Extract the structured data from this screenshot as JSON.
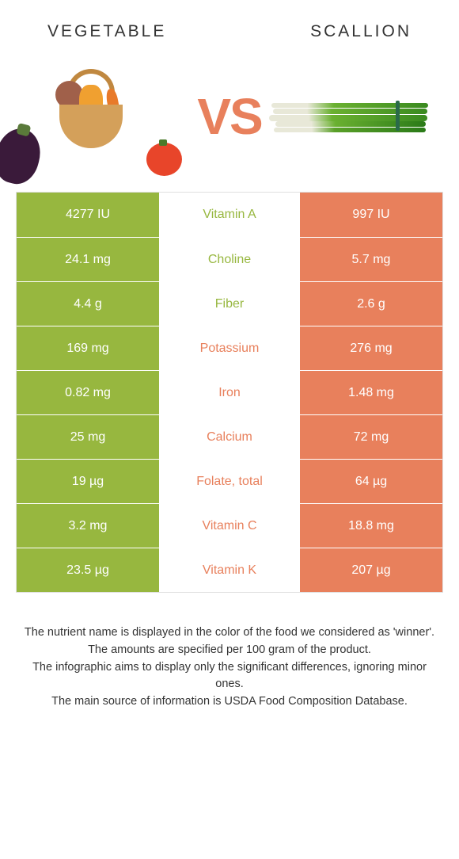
{
  "header": {
    "left_title": "VEGETABLE",
    "right_title": "SCALLION"
  },
  "vs_label": "VS",
  "colors": {
    "left_bg": "#97b73f",
    "right_bg": "#e8805c",
    "left_text": "#97b73f",
    "right_text": "#e8805c",
    "vs_color": "#e8805c"
  },
  "comparison": {
    "rows": [
      {
        "left": "4277 IU",
        "nutrient": "Vitamin A",
        "right": "997 IU",
        "winner": "left"
      },
      {
        "left": "24.1 mg",
        "nutrient": "Choline",
        "right": "5.7 mg",
        "winner": "left"
      },
      {
        "left": "4.4 g",
        "nutrient": "Fiber",
        "right": "2.6 g",
        "winner": "left"
      },
      {
        "left": "169 mg",
        "nutrient": "Potassium",
        "right": "276 mg",
        "winner": "right"
      },
      {
        "left": "0.82 mg",
        "nutrient": "Iron",
        "right": "1.48 mg",
        "winner": "right"
      },
      {
        "left": "25 mg",
        "nutrient": "Calcium",
        "right": "72 mg",
        "winner": "right"
      },
      {
        "left": "19 µg",
        "nutrient": "Folate, total",
        "right": "64 µg",
        "winner": "right"
      },
      {
        "left": "3.2 mg",
        "nutrient": "Vitamin C",
        "right": "18.8 mg",
        "winner": "right"
      },
      {
        "left": "23.5 µg",
        "nutrient": "Vitamin K",
        "right": "207 µg",
        "winner": "right"
      }
    ]
  },
  "footnotes": {
    "line1": "The nutrient name is displayed in the color of the food we considered as 'winner'.",
    "line2": "The amounts are specified per 100 gram of the product.",
    "line3": "The infographic aims to display only the significant differences, ignoring minor ones.",
    "line4": "The main source of information is USDA Food Composition Database."
  }
}
